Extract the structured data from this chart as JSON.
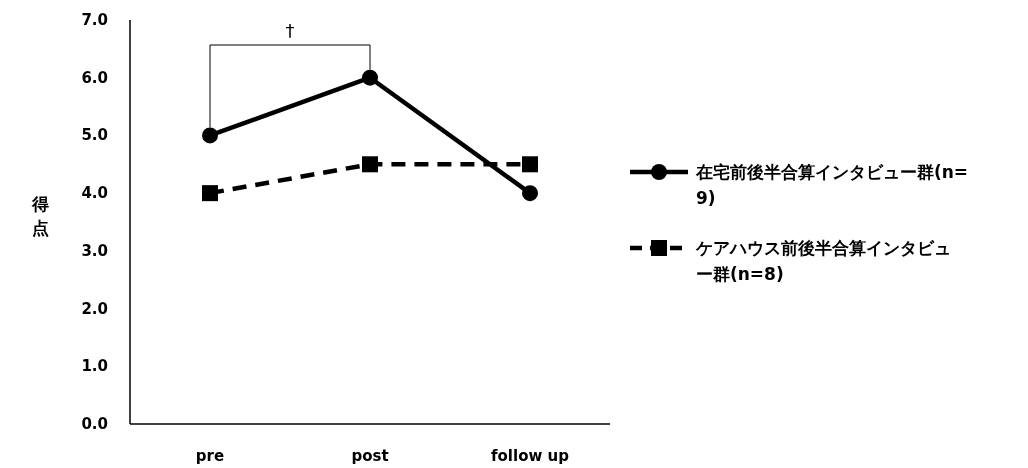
{
  "chart_data": {
    "type": "line",
    "ylabel": "得点",
    "categories": [
      "pre",
      "post",
      "follow up"
    ],
    "series": [
      {
        "name": "在宅前後半合算インタビュー群(n=9)",
        "color": "#000000",
        "values": [
          5.0,
          6.0,
          4.0
        ],
        "marker": "circle",
        "line_style": "solid"
      },
      {
        "name": "ケアハウス前後半合算インタビュー群(n=8)",
        "color": "#000000",
        "values": [
          4.0,
          4.5,
          4.5
        ],
        "marker": "square",
        "line_style": "dashed"
      }
    ],
    "ylim": [
      0,
      7
    ],
    "yticks": [
      {
        "value": 0,
        "label": "0.0"
      },
      {
        "value": 1,
        "label": "1.0"
      },
      {
        "value": 2,
        "label": "2.0"
      },
      {
        "value": 3,
        "label": "3.0"
      },
      {
        "value": 4,
        "label": "4.0"
      },
      {
        "value": 5,
        "label": "5.0"
      },
      {
        "value": 6,
        "label": "6.0"
      },
      {
        "value": 7,
        "label": "7.0"
      }
    ],
    "annotations": [
      "†"
    ],
    "grid": false,
    "legend": "right"
  }
}
